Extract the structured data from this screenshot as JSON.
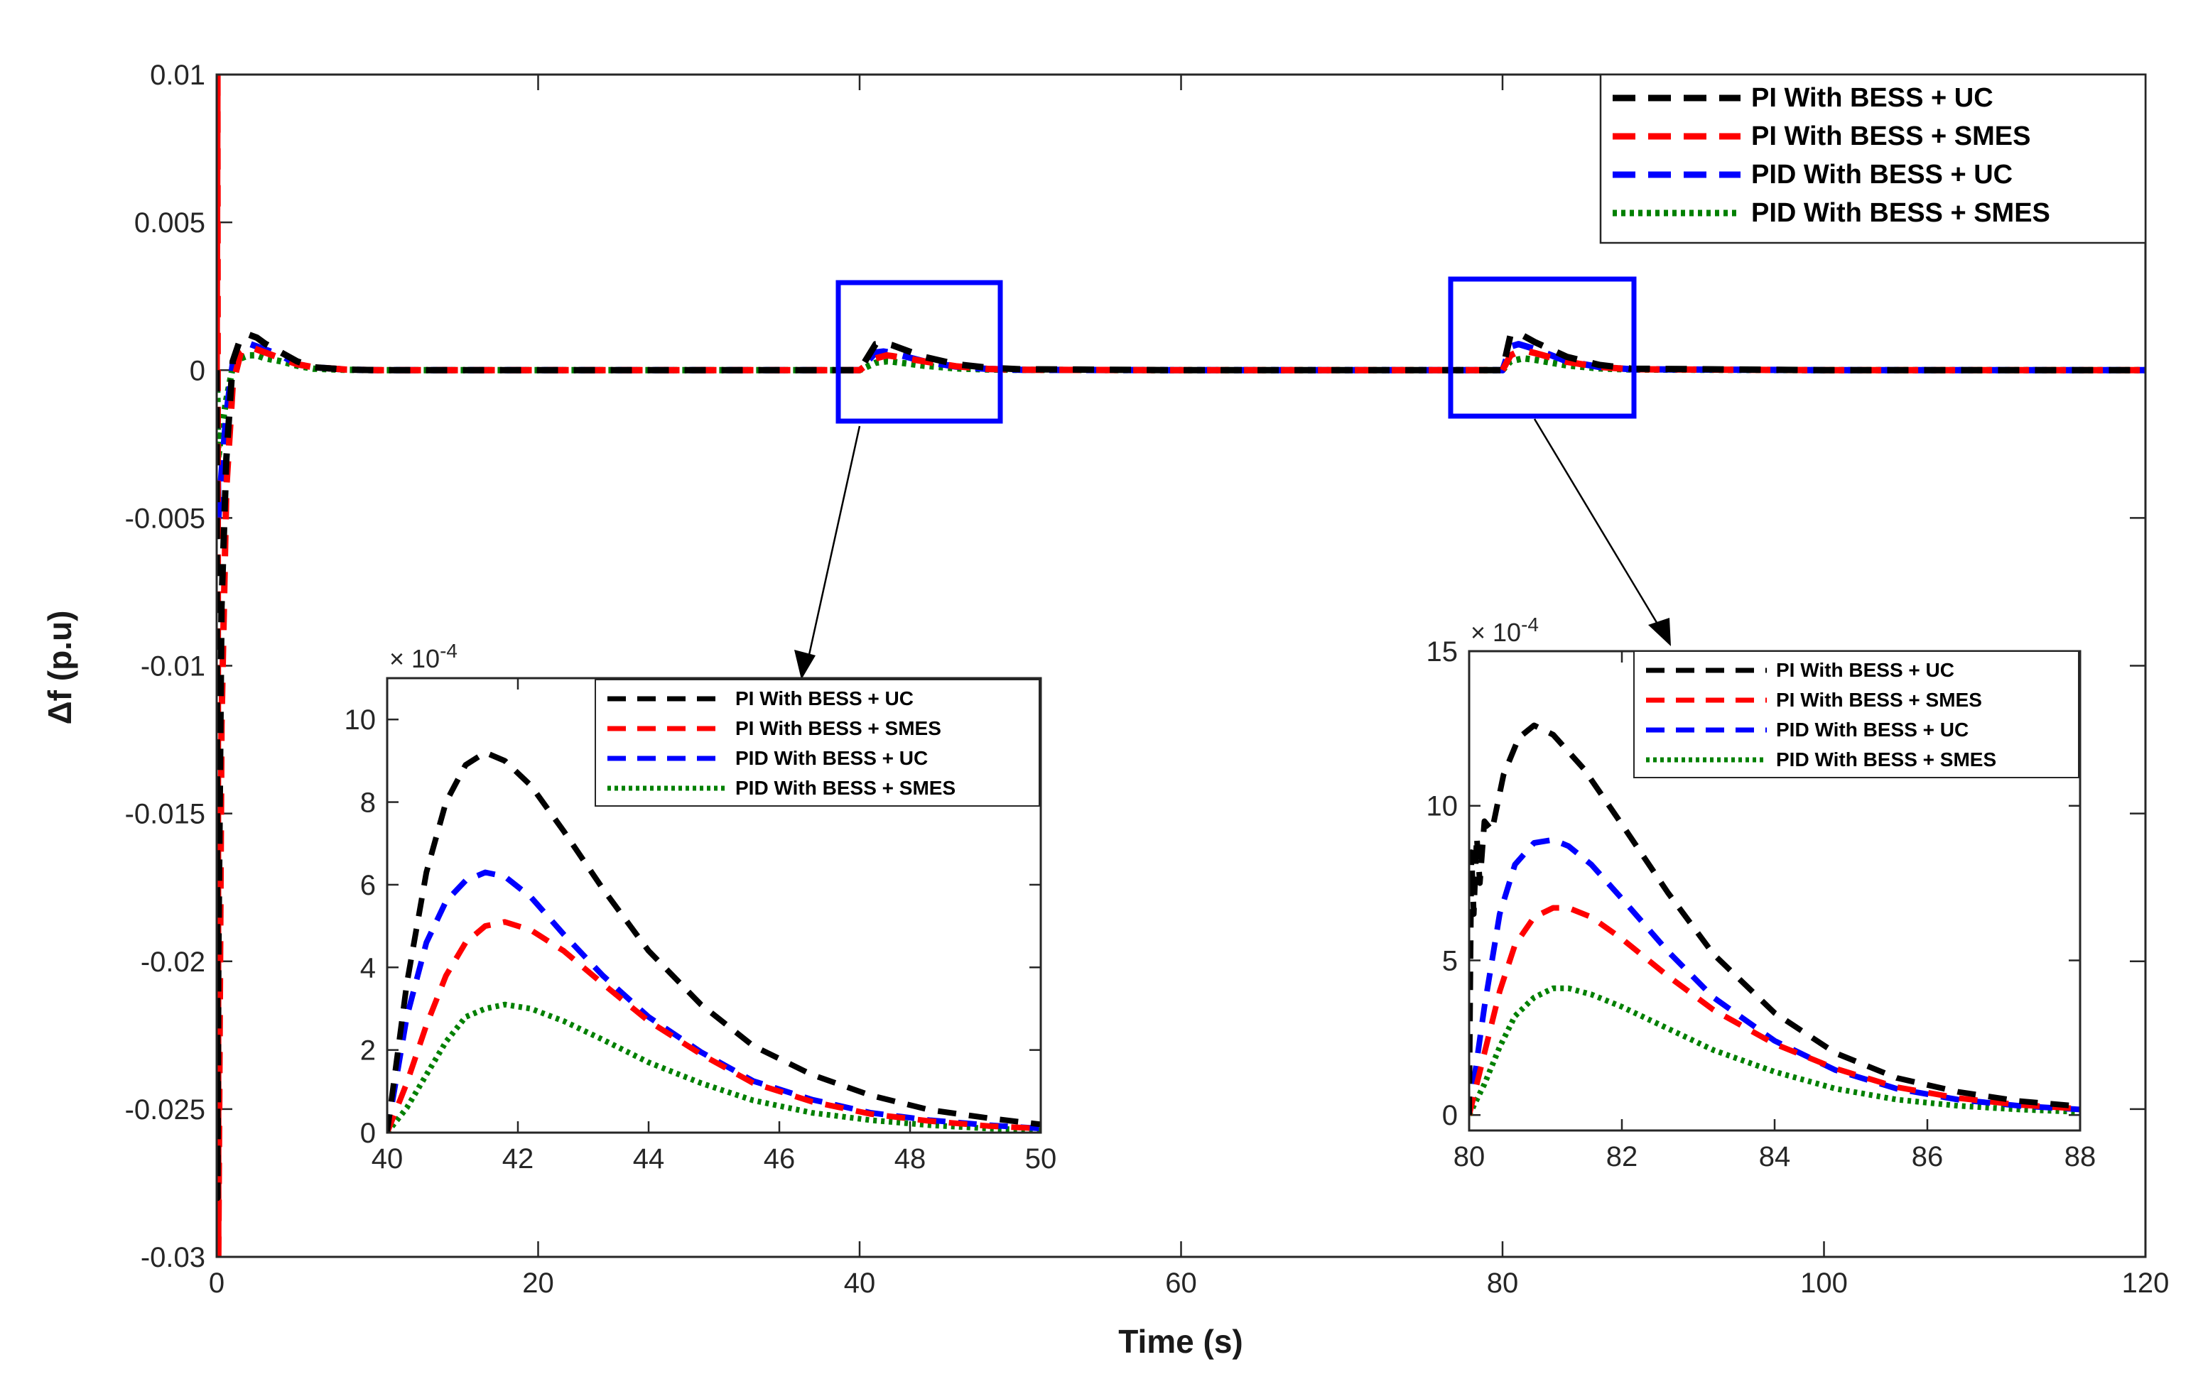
{
  "chart_data": [
    {
      "id": "main",
      "type": "line",
      "xlabel": "Time (s)",
      "ylabel": "Δf (p.u)",
      "xlim": [
        0,
        120
      ],
      "ylim": [
        -0.03,
        0.01
      ],
      "x_ticks": [
        "0",
        "20",
        "40",
        "60",
        "80",
        "100",
        "120"
      ],
      "y_ticks": [
        "0.01",
        "0.005",
        "0",
        "-0.005",
        "-0.01",
        "-0.015",
        "-0.02",
        "-0.025",
        "-0.03"
      ],
      "legend_position": "top-right",
      "series": [
        {
          "name": "PI With BESS + UC",
          "color": "#000000",
          "style": "dashed",
          "x": [
            0,
            0.05,
            0.1,
            0.3,
            0.6,
            1.0,
            1.5,
            2.0,
            2.5,
            3,
            4,
            5,
            6,
            8,
            10,
            20,
            40,
            41,
            41.5,
            42,
            44,
            46,
            48,
            50,
            60,
            80,
            80.5,
            81,
            82,
            84,
            86,
            88,
            100,
            120
          ],
          "y": [
            0,
            -0.028,
            -0.02,
            -0.008,
            -0.003,
            0.0003,
            0.0011,
            0.0012,
            0.0011,
            0.0009,
            0.0006,
            0.0003,
            0.0001,
            2e-05,
            0,
            0,
            0,
            0.00088,
            0.00092,
            0.00085,
            0.00045,
            0.0002,
            8e-05,
            3e-05,
            0,
            0,
            0.0012,
            0.00125,
            0.00095,
            0.00045,
            0.00018,
            5e-05,
            0,
            0
          ]
        },
        {
          "name": "PI With BESS + SMES",
          "color": "#ff0000",
          "style": "dashed",
          "x": [
            0,
            0.05,
            0.1,
            0.3,
            0.6,
            1.0,
            1.5,
            2.0,
            2.5,
            3,
            4,
            5,
            6,
            8,
            10,
            20,
            40,
            41,
            41.7,
            42,
            44,
            46,
            48,
            50,
            60,
            80,
            80.5,
            81.2,
            82,
            84,
            86,
            88,
            100,
            120
          ],
          "y": [
            0,
            0.01,
            -0.03,
            -0.012,
            -0.004,
            -0.0005,
            0.0006,
            0.0008,
            0.0007,
            0.0006,
            0.0004,
            0.0002,
            0.0001,
            2e-05,
            0,
            0,
            0,
            0.0004,
            0.0005,
            0.00048,
            0.0003,
            0.00013,
            4e-05,
            1e-05,
            0,
            0,
            0.0005,
            0.00068,
            0.00058,
            0.00028,
            0.00011,
            3e-05,
            0,
            0
          ]
        },
        {
          "name": "PID With BESS + UC",
          "color": "#0000ff",
          "style": "dashed",
          "x": [
            0,
            0.05,
            0.1,
            0.3,
            0.6,
            1.0,
            1.5,
            2.0,
            2.5,
            3,
            4,
            5,
            6,
            8,
            10,
            20,
            40,
            41,
            41.5,
            42,
            44,
            46,
            48,
            50,
            60,
            80,
            80.5,
            81,
            82,
            84,
            86,
            88,
            100,
            120
          ],
          "y": [
            0,
            -0.002,
            -0.005,
            -0.0035,
            -0.0015,
            0.0002,
            0.0008,
            0.0009,
            0.0008,
            0.0007,
            0.0005,
            0.0002,
            0.0001,
            2e-05,
            0,
            0,
            0,
            0.0006,
            0.00063,
            0.00058,
            0.0003,
            0.00012,
            4e-05,
            1e-05,
            0,
            0,
            0.0008,
            0.00088,
            0.00072,
            0.0003,
            0.00011,
            3e-05,
            0,
            0
          ]
        },
        {
          "name": "PID With BESS + SMES",
          "color": "#008000",
          "style": "dotted",
          "x": [
            0,
            0.05,
            0.1,
            0.3,
            0.6,
            1.0,
            1.5,
            2.0,
            2.5,
            3,
            4,
            5,
            6,
            8,
            10,
            20,
            40,
            41,
            41.7,
            42,
            44,
            46,
            48,
            50,
            60,
            80,
            80.5,
            81.3,
            82,
            84,
            86,
            88,
            100,
            120
          ],
          "y": [
            0,
            -0.001,
            -0.003,
            -0.002,
            -0.001,
            0.0001,
            0.0004,
            0.0005,
            0.0005,
            0.0004,
            0.0003,
            0.00015,
            5e-05,
            1e-05,
            0,
            0,
            0,
            0.00025,
            0.0003,
            0.00029,
            0.00015,
            6e-05,
            2e-05,
            1e-05,
            0,
            0,
            0.0003,
            0.0004,
            0.00035,
            0.00016,
            6e-05,
            2e-05,
            0,
            0
          ]
        }
      ]
    },
    {
      "id": "inset1",
      "type": "line",
      "xlim": [
        40,
        50
      ],
      "ylim": [
        0,
        11
      ],
      "multiplier": "× 10",
      "multiplier_exp": "-4",
      "x_ticks": [
        "40",
        "42",
        "44",
        "46",
        "48",
        "50"
      ],
      "y_ticks": [
        "10",
        "8",
        "6",
        "4",
        "2",
        "0"
      ],
      "series": [
        {
          "name": "PI With BESS + UC",
          "color": "#000000",
          "style": "dashed",
          "x": [
            40,
            40.3,
            40.6,
            40.9,
            41.2,
            41.5,
            41.8,
            42.2,
            42.7,
            43.3,
            44,
            44.8,
            45.6,
            46.5,
            47.4,
            48.3,
            49.2,
            50
          ],
          "y": [
            0,
            3.6,
            6.3,
            8.0,
            8.9,
            9.2,
            9.0,
            8.4,
            7.3,
            5.9,
            4.4,
            3.1,
            2.1,
            1.4,
            0.9,
            0.55,
            0.35,
            0.2
          ]
        },
        {
          "name": "PI With BESS + SMES",
          "color": "#ff0000",
          "style": "dashed",
          "x": [
            40,
            40.3,
            40.6,
            40.9,
            41.2,
            41.5,
            41.8,
            42.2,
            42.7,
            43.3,
            44,
            44.8,
            45.6,
            46.5,
            47.4,
            48.3,
            49.2,
            50
          ],
          "y": [
            0,
            1.2,
            2.6,
            3.8,
            4.6,
            5.0,
            5.1,
            4.9,
            4.4,
            3.6,
            2.7,
            1.9,
            1.2,
            0.75,
            0.45,
            0.28,
            0.16,
            0.1
          ]
        },
        {
          "name": "PID With BESS + UC",
          "color": "#0000ff",
          "style": "dashed",
          "x": [
            40,
            40.3,
            40.6,
            40.9,
            41.2,
            41.5,
            41.8,
            42.2,
            42.7,
            43.3,
            44,
            44.8,
            45.6,
            46.5,
            47.4,
            48.3,
            49.2,
            50
          ],
          "y": [
            0,
            2.8,
            4.6,
            5.6,
            6.1,
            6.3,
            6.2,
            5.7,
            4.8,
            3.8,
            2.8,
            1.95,
            1.25,
            0.8,
            0.48,
            0.3,
            0.18,
            0.1
          ]
        },
        {
          "name": "PID With BESS + SMES",
          "color": "#008000",
          "style": "dotted",
          "x": [
            40,
            40.3,
            40.6,
            40.9,
            41.2,
            41.5,
            41.8,
            42.2,
            42.7,
            43.3,
            44,
            44.8,
            45.6,
            46.5,
            47.4,
            48.3,
            49.2,
            50
          ],
          "y": [
            0,
            0.6,
            1.4,
            2.2,
            2.8,
            3.0,
            3.1,
            3.0,
            2.7,
            2.25,
            1.7,
            1.2,
            0.78,
            0.48,
            0.3,
            0.18,
            0.1,
            0.06
          ]
        }
      ]
    },
    {
      "id": "inset2",
      "type": "line",
      "xlim": [
        80,
        88
      ],
      "ylim": [
        -0.5,
        15
      ],
      "multiplier": "× 10",
      "multiplier_exp": "-4",
      "x_ticks": [
        "80",
        "82",
        "84",
        "86",
        "88"
      ],
      "y_ticks": [
        "15",
        "10",
        "5",
        "0"
      ],
      "series": [
        {
          "name": "PI With BESS + UC",
          "color": "#000000",
          "style": "dashed",
          "x": [
            80,
            80.03,
            80.06,
            80.1,
            80.14,
            80.2,
            80.3,
            80.45,
            80.65,
            80.85,
            81.1,
            81.5,
            82,
            82.6,
            83.2,
            84,
            84.8,
            85.6,
            86.4,
            87.2,
            88
          ],
          "y": [
            0,
            8.5,
            6.5,
            9.0,
            7.5,
            9.5,
            9.2,
            11.0,
            12.2,
            12.6,
            12.3,
            11.2,
            9.4,
            7.2,
            5.2,
            3.3,
            2.0,
            1.2,
            0.75,
            0.45,
            0.28
          ]
        },
        {
          "name": "PI With BESS + SMES",
          "color": "#ff0000",
          "style": "dashed",
          "x": [
            80,
            80.2,
            80.4,
            80.6,
            80.85,
            81.1,
            81.3,
            81.6,
            82,
            82.6,
            83.2,
            84,
            84.8,
            85.6,
            86.4,
            87.2,
            88
          ],
          "y": [
            0,
            2.0,
            4.0,
            5.5,
            6.4,
            6.7,
            6.7,
            6.4,
            5.7,
            4.5,
            3.4,
            2.3,
            1.5,
            0.9,
            0.55,
            0.33,
            0.2
          ]
        },
        {
          "name": "PID With BESS + UC",
          "color": "#0000ff",
          "style": "dashed",
          "x": [
            80,
            80.2,
            80.4,
            80.6,
            80.85,
            81.1,
            81.3,
            81.6,
            82,
            82.6,
            83.2,
            84,
            84.8,
            85.6,
            86.4,
            87.2,
            88
          ],
          "y": [
            0,
            3.5,
            6.5,
            8.1,
            8.8,
            8.9,
            8.7,
            8.1,
            7.0,
            5.3,
            3.8,
            2.4,
            1.45,
            0.85,
            0.5,
            0.3,
            0.18
          ]
        },
        {
          "name": "PID With BESS + SMES",
          "color": "#008000",
          "style": "dotted",
          "x": [
            80,
            80.2,
            80.4,
            80.6,
            80.85,
            81.1,
            81.3,
            81.6,
            82,
            82.6,
            83.2,
            84,
            84.8,
            85.6,
            86.4,
            87.2,
            88
          ],
          "y": [
            0,
            1.0,
            2.2,
            3.2,
            3.8,
            4.1,
            4.1,
            3.9,
            3.5,
            2.8,
            2.1,
            1.4,
            0.85,
            0.5,
            0.3,
            0.18,
            0.1
          ]
        }
      ]
    }
  ],
  "colors": {
    "black": "#000000",
    "red": "#ff0000",
    "blue": "#0000ff",
    "green": "#008000",
    "zoom_box": "#0000ff"
  }
}
